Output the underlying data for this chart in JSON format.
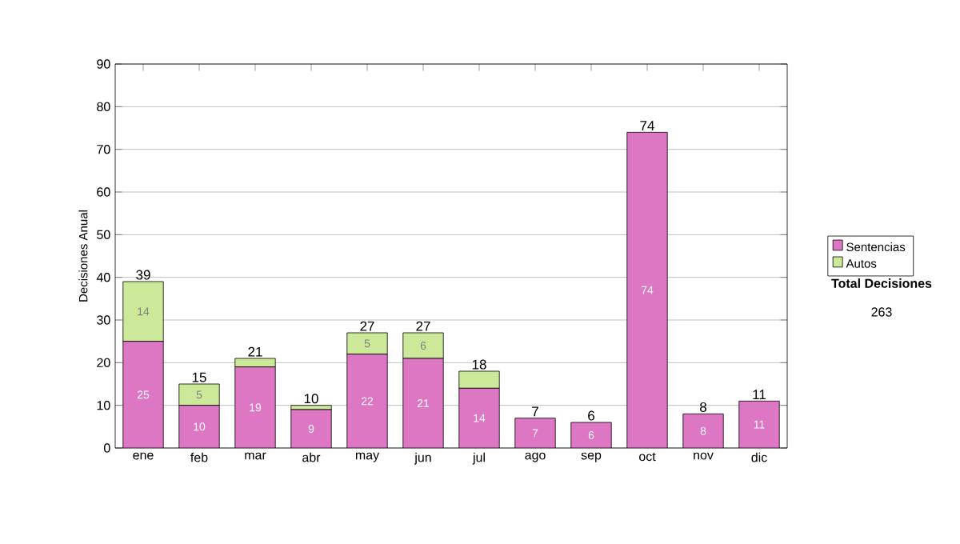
{
  "chart_data": {
    "type": "bar",
    "stacked": true,
    "ylabel": "Decisiones Anual",
    "categories": [
      "ene",
      "feb",
      "mar",
      "abr",
      "may",
      "jun",
      "jul",
      "ago",
      "sep",
      "oct",
      "nov",
      "dic"
    ],
    "series": [
      {
        "name": "Sentencias",
        "color": "#dd77c4",
        "values": [
          25,
          10,
          19,
          9,
          22,
          21,
          14,
          7,
          6,
          74,
          8,
          11
        ],
        "value_labels": [
          "25",
          "10",
          "19",
          "9",
          "22",
          "21",
          "14",
          "7",
          "6",
          "74",
          "8",
          "11"
        ]
      },
      {
        "name": "Autos",
        "color": "#cce899",
        "values": [
          14,
          5,
          2,
          1,
          5,
          6,
          4,
          0,
          0,
          0,
          0,
          0
        ],
        "value_labels": [
          "14",
          "5",
          null,
          null,
          "5",
          "6",
          null,
          null,
          null,
          null,
          null,
          null
        ]
      }
    ],
    "totals": [
      "39",
      "15",
      "21",
      "10",
      "27",
      "27",
      "18",
      "7",
      "6",
      "74",
      "8",
      "11"
    ],
    "ylim": [
      0,
      90
    ],
    "yticks": [
      0,
      10,
      20,
      30,
      40,
      50,
      60,
      70,
      80,
      90
    ],
    "grid": "y",
    "legend": "right",
    "annotations": [
      "Total Decisiones",
      "263"
    ]
  }
}
